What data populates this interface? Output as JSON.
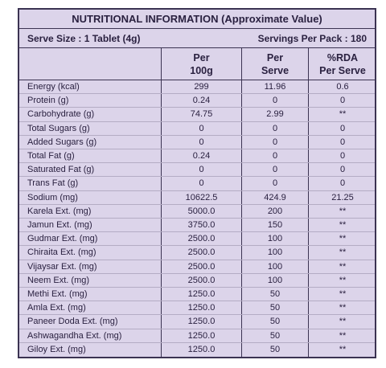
{
  "label": {
    "title": "NUTRITIONAL INFORMATION (Approximate Value)",
    "serve_size": "Serve Size : 1 Tablet (4g)",
    "servings": "Servings Per Pack : 180",
    "columns": [
      [
        "Per",
        "100g"
      ],
      [
        "Per",
        "Serve"
      ],
      [
        "%RDA",
        "Per Serve"
      ]
    ],
    "rows": [
      [
        "Energy (kcal)",
        "299",
        "11.96",
        "0.6"
      ],
      [
        "Protein (g)",
        "0.24",
        "0",
        "0"
      ],
      [
        "Carbohydrate (g)",
        "74.75",
        "2.99",
        "**"
      ],
      [
        "Total Sugars (g)",
        "0",
        "0",
        "0"
      ],
      [
        "Added Sugars (g)",
        "0",
        "0",
        "0"
      ],
      [
        "Total Fat (g)",
        "0.24",
        "0",
        "0"
      ],
      [
        "Saturated Fat (g)",
        "0",
        "0",
        "0"
      ],
      [
        "Trans Fat (g)",
        "0",
        "0",
        "0"
      ],
      [
        "Sodium (mg)",
        "10622.5",
        "424.9",
        "21.25"
      ],
      [
        "Karela Ext. (mg)",
        "5000.0",
        "200",
        "**"
      ],
      [
        "Jamun Ext. (mg)",
        "3750.0",
        "150",
        "**"
      ],
      [
        "Gudmar Ext. (mg)",
        "2500.0",
        "100",
        "**"
      ],
      [
        "Chiraita Ext. (mg)",
        "2500.0",
        "100",
        "**"
      ],
      [
        "Vijaysar Ext. (mg)",
        "2500.0",
        "100",
        "**"
      ],
      [
        "Neem Ext. (mg)",
        "2500.0",
        "100",
        "**"
      ],
      [
        "Methi Ext. (mg)",
        "1250.0",
        "50",
        "**"
      ],
      [
        "Amla Ext. (mg)",
        "1250.0",
        "50",
        "**"
      ],
      [
        "Paneer Doda Ext. (mg)",
        "1250.0",
        "50",
        "**"
      ],
      [
        "Ashwagandha Ext. (mg)",
        "1250.0",
        "50",
        "**"
      ],
      [
        "Giloy Ext. (mg)",
        "1250.0",
        "50",
        "**"
      ]
    ]
  }
}
